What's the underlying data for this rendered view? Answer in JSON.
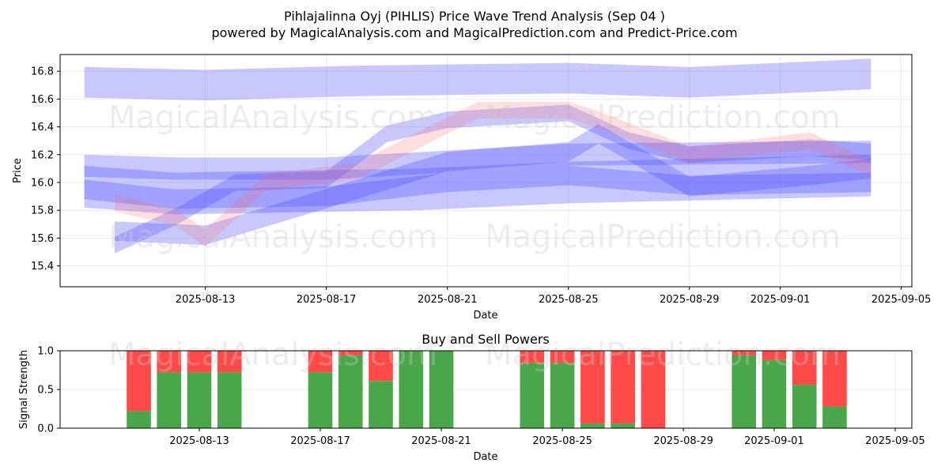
{
  "title_line1": "Pihlajalinna Oyj (PIHLIS) Price Wave Trend Analysis (Sep 04 )",
  "title_line2": "powered by MagicalAnalysis.com and MagicalPrediction.com and Predict-Price.com",
  "watermarks": [
    "MagicalAnalysis.com",
    "MagicalPrediction.com"
  ],
  "chart_data": [
    {
      "type": "area",
      "xlabel": "Date",
      "ylabel": "Price",
      "ylim": [
        15.25,
        16.92
      ],
      "xlim": [
        "2025-08-09",
        "2025-09-05"
      ],
      "x_ticks": [
        "2025-08-13",
        "2025-08-17",
        "2025-08-21",
        "2025-08-25",
        "2025-08-29",
        "2025-09-01",
        "2025-09-05"
      ],
      "y_ticks": [
        15.4,
        15.6,
        15.8,
        16.0,
        16.2,
        16.4,
        16.6,
        16.8
      ],
      "grid": true,
      "colors": {
        "blue_band": "#4a4aff",
        "red_band": "#ff6a6a"
      },
      "bands": [
        {
          "color": "blue",
          "x": [
            "2025-08-09",
            "2025-08-13",
            "2025-08-18",
            "2025-08-25",
            "2025-08-29",
            "2025-09-04"
          ],
          "center": [
            16.72,
            16.7,
            16.73,
            16.75,
            16.72,
            16.78
          ],
          "width": 0.22
        },
        {
          "color": "blue",
          "x": [
            "2025-08-09",
            "2025-08-12",
            "2025-08-20",
            "2025-08-25",
            "2025-09-04"
          ],
          "center": [
            15.97,
            15.92,
            15.95,
            16.0,
            16.05
          ],
          "width": 0.3
        },
        {
          "color": "blue",
          "x": [
            "2025-08-09",
            "2025-08-12",
            "2025-08-17",
            "2025-08-25",
            "2025-09-04"
          ],
          "center": [
            16.12,
            16.1,
            16.1,
            16.2,
            16.22
          ],
          "width": 0.16
        },
        {
          "color": "blue",
          "x": [
            "2025-08-10",
            "2025-08-13",
            "2025-08-18",
            "2025-08-21",
            "2025-08-25",
            "2025-08-26",
            "2025-08-29",
            "2025-09-02",
            "2025-09-04"
          ],
          "center": [
            15.65,
            15.62,
            15.95,
            16.15,
            16.22,
            16.35,
            15.97,
            16.05,
            16.1
          ],
          "width": 0.14
        },
        {
          "color": "blue",
          "x": [
            "2025-08-10",
            "2025-08-12",
            "2025-08-14",
            "2025-08-17",
            "2025-08-19",
            "2025-08-21",
            "2025-08-25",
            "2025-08-27",
            "2025-08-29",
            "2025-09-02",
            "2025-09-04"
          ],
          "center": [
            15.55,
            15.75,
            16.0,
            16.02,
            16.35,
            16.45,
            16.5,
            16.3,
            16.2,
            16.25,
            16.22
          ],
          "width": 0.12
        },
        {
          "color": "blue",
          "x": [
            "2025-08-09",
            "2025-08-12",
            "2025-08-17",
            "2025-08-21",
            "2025-08-25",
            "2025-08-29",
            "2025-09-04"
          ],
          "center": [
            15.95,
            15.88,
            15.9,
            16.0,
            16.05,
            15.98,
            16.0
          ],
          "width": 0.14
        },
        {
          "color": "red",
          "x": [
            "2025-08-10",
            "2025-08-12",
            "2025-08-13",
            "2025-08-15",
            "2025-08-18",
            "2025-08-20",
            "2025-08-22",
            "2025-08-25",
            "2025-08-26",
            "2025-08-29",
            "2025-09-02",
            "2025-09-04"
          ],
          "center": [
            15.85,
            15.75,
            15.6,
            16.0,
            16.08,
            16.3,
            16.52,
            16.52,
            16.45,
            16.2,
            16.3,
            16.1
          ],
          "width": 0.12
        }
      ]
    },
    {
      "type": "bar",
      "title": "Buy and Sell Powers",
      "xlabel": "Date",
      "ylabel": "Signal Strength",
      "ylim": [
        0,
        1
      ],
      "y_ticks": [
        0.0,
        0.5,
        1.0
      ],
      "x_ticks": [
        "2025-08-13",
        "2025-08-17",
        "2025-08-21",
        "2025-08-25",
        "2025-08-29",
        "2025-09-01",
        "2025-09-05"
      ],
      "colors": {
        "buy": "#4aa64a",
        "sell": "#ff4a4a"
      },
      "bars": [
        {
          "date": "2025-08-11",
          "buy": 0.22
        },
        {
          "date": "2025-08-12",
          "buy": 0.72
        },
        {
          "date": "2025-08-13",
          "buy": 0.72
        },
        {
          "date": "2025-08-14",
          "buy": 0.72
        },
        {
          "date": "2025-08-17",
          "buy": 0.72
        },
        {
          "date": "2025-08-18",
          "buy": 0.94
        },
        {
          "date": "2025-08-19",
          "buy": 0.61
        },
        {
          "date": "2025-08-20",
          "buy": 1.0
        },
        {
          "date": "2025-08-21",
          "buy": 1.0
        },
        {
          "date": "2025-08-24",
          "buy": 0.84
        },
        {
          "date": "2025-08-25",
          "buy": 0.84
        },
        {
          "date": "2025-08-26",
          "buy": 0.06
        },
        {
          "date": "2025-08-27",
          "buy": 0.06
        },
        {
          "date": "2025-08-28",
          "buy": 0.0
        },
        {
          "date": "2025-08-31",
          "buy": 0.94
        },
        {
          "date": "2025-09-01",
          "buy": 0.88
        },
        {
          "date": "2025-09-02",
          "buy": 0.56
        },
        {
          "date": "2025-09-03",
          "buy": 0.28
        }
      ]
    }
  ]
}
